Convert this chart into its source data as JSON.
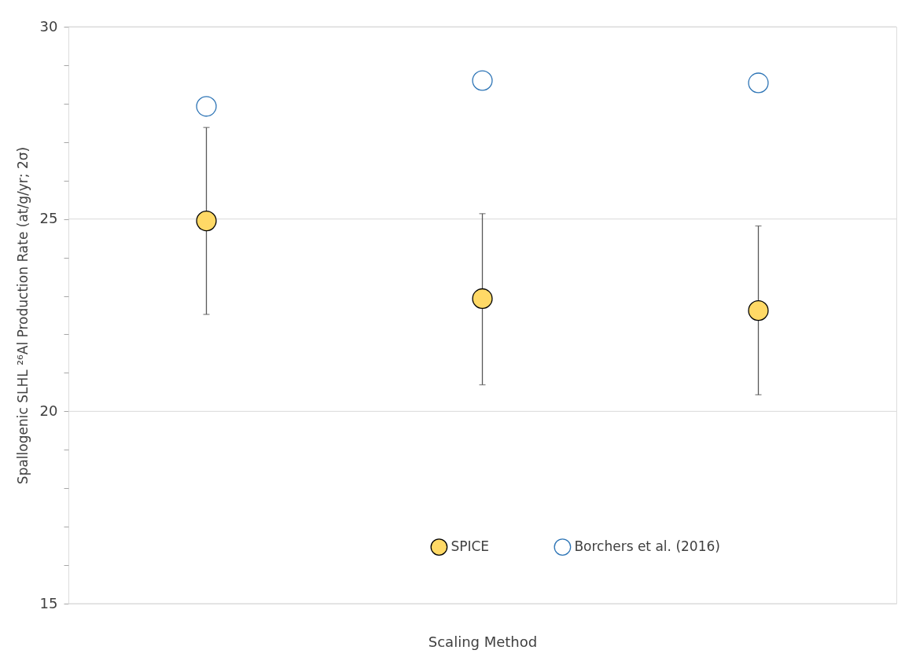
{
  "chart_data": {
    "type": "scatter",
    "xlabel": "Scaling Method",
    "ylabel": "Spallogenic SLHL ²⁶Al Production Rate (at/g/yr; 2σ)",
    "categories": [
      null,
      null,
      null
    ],
    "series": [
      {
        "name": "SPICE",
        "color": "#ffd966",
        "values": [
          24.95,
          22.93,
          22.62
        ],
        "errors": [
          [
            22.52,
            27.38
          ],
          [
            20.69,
            25.14
          ],
          [
            20.43,
            24.82
          ]
        ]
      },
      {
        "name": "Borchers et al. (2016)",
        "color": "#2e75b6",
        "values": [
          27.93,
          28.6,
          28.54
        ]
      }
    ],
    "ylim": [
      15,
      30
    ],
    "yticks": [
      15,
      {
        "value": 16,
        "label": null
      },
      {
        "value": 17,
        "label": null
      },
      {
        "value": 18,
        "label": null
      },
      {
        "value": 19,
        "label": null
      },
      20,
      {
        "value": 21,
        "label": null
      },
      {
        "value": 22,
        "label": null
      },
      {
        "value": 23,
        "label": null
      },
      {
        "value": 24,
        "label": null
      },
      25,
      {
        "value": 26,
        "label": null
      },
      {
        "value": 27,
        "label": null
      },
      {
        "value": 28,
        "label": null
      },
      {
        "value": 29,
        "label": null
      },
      30
    ],
    "grid": "y",
    "legend": "bottom",
    "marker": "circle"
  }
}
